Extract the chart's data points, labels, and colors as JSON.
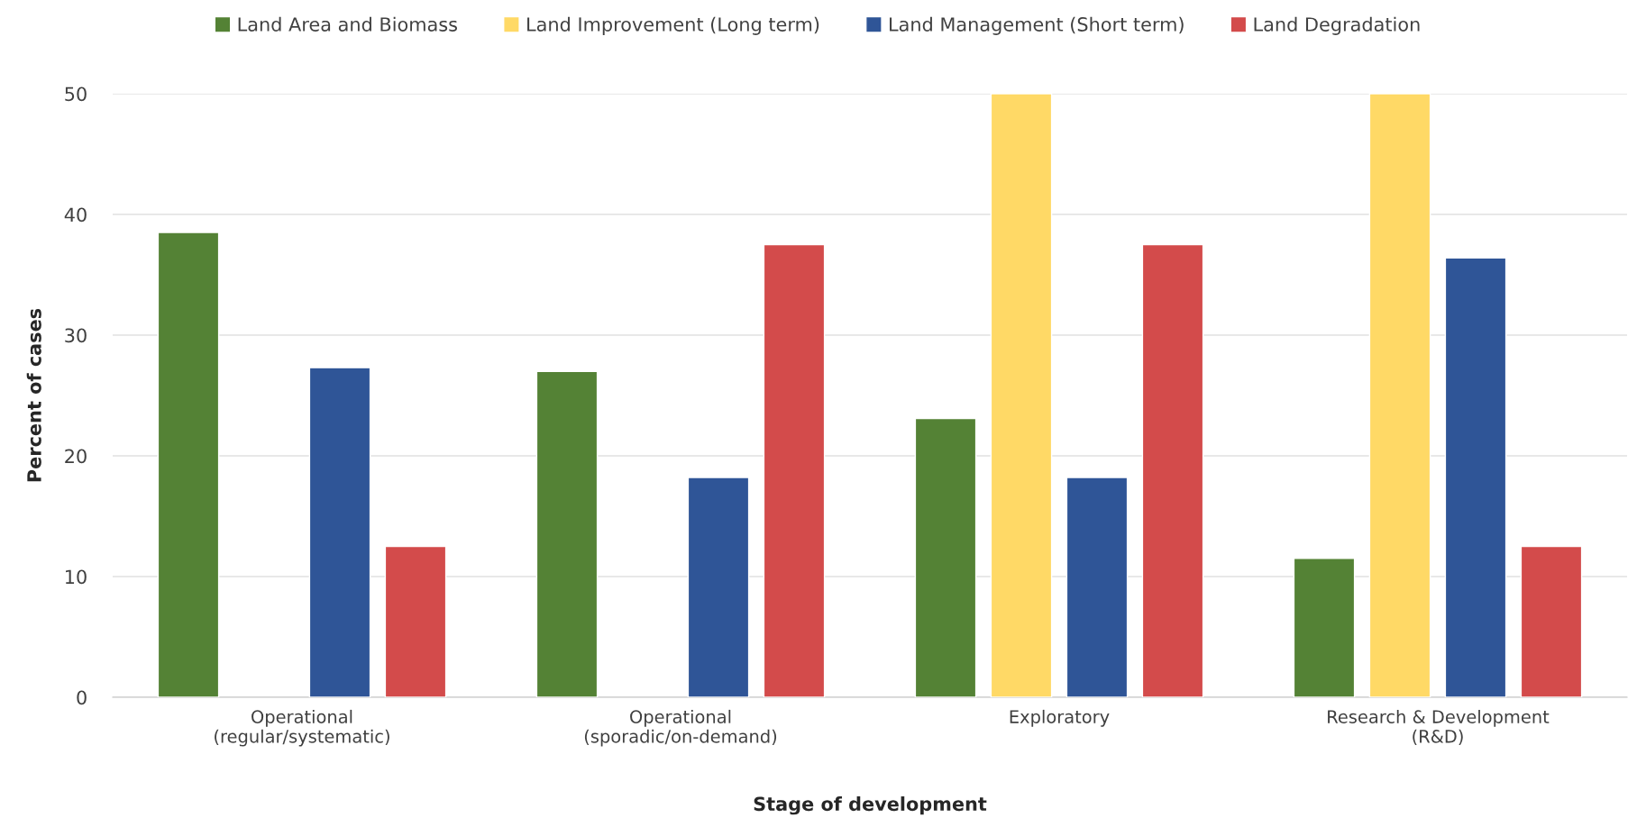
{
  "chart_data": {
    "type": "bar",
    "xlabel": "Stage of development",
    "ylabel": "Percent of cases",
    "categories": [
      "Operational\n(regular/systematic)",
      "Operational\n(sporadic/on-demand)",
      "Exploratory",
      "Research & Development\n(R&D)"
    ],
    "series": [
      {
        "name": "Land Area and Biomass",
        "color": "#548235",
        "values": [
          38.5,
          27.0,
          23.1,
          11.5
        ]
      },
      {
        "name": "Land Improvement (Long term)",
        "color": "#ffd966",
        "values": [
          null,
          null,
          50,
          50
        ]
      },
      {
        "name": "Land Management (Short term)",
        "color": "#2f5597",
        "values": [
          27.3,
          18.2,
          18.2,
          36.4
        ]
      },
      {
        "name": "Land Degradation",
        "color": "#d34b4b",
        "values": [
          12.5,
          37.5,
          37.5,
          12.5
        ]
      }
    ],
    "ylim": [
      0,
      50
    ],
    "yticks": [
      0,
      10,
      20,
      30,
      40,
      50
    ],
    "grid": "y",
    "legend": "top"
  }
}
